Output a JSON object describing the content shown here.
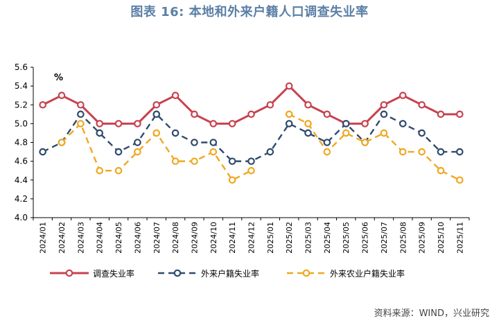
{
  "title": "图表 16: 本地和外来户籍人口调查失业率",
  "source": "资料来源：WIND，兴业研究",
  "chart_data": {
    "type": "line",
    "unit": "%",
    "ylim": [
      4.0,
      5.6
    ],
    "yticks": [
      "4.0",
      "4.2",
      "4.4",
      "4.6",
      "4.8",
      "5.0",
      "5.2",
      "5.4",
      "5.6"
    ],
    "categories": [
      "2024/01",
      "2024/02",
      "2024/03",
      "2024/04",
      "2024/05",
      "2024/06",
      "2024/07",
      "2024/08",
      "2024/09",
      "2024/10",
      "2024/11",
      "2024/12",
      "2025/01",
      "2025/02",
      "2025/03",
      "2025/04",
      "2025/05",
      "2025/06",
      "2025/07",
      "2025/08",
      "2025/09",
      "2025/10",
      "2025/11"
    ],
    "series": [
      {
        "name": "调查失业率",
        "color": "#c8424f",
        "style": "solid",
        "values": [
          5.2,
          5.3,
          5.2,
          5.0,
          5.0,
          5.0,
          5.2,
          5.3,
          5.1,
          5.0,
          5.0,
          5.1,
          5.2,
          5.4,
          5.2,
          5.1,
          5.0,
          5.0,
          5.2,
          5.3,
          5.2,
          5.1,
          5.1
        ]
      },
      {
        "name": "外来户籍失业率",
        "color": "#2f4a6e",
        "style": "dash",
        "values": [
          4.7,
          4.8,
          5.1,
          4.9,
          4.7,
          4.8,
          5.1,
          4.9,
          4.8,
          4.8,
          4.6,
          4.6,
          4.7,
          5.0,
          4.9,
          4.8,
          5.0,
          4.8,
          5.1,
          5.0,
          4.9,
          4.7,
          4.7
        ]
      },
      {
        "name": "外来农业户籍失业率",
        "color": "#f0a820",
        "style": "dash",
        "values": [
          null,
          4.8,
          5.0,
          4.5,
          4.5,
          4.7,
          4.9,
          4.6,
          4.6,
          4.7,
          4.4,
          4.5,
          null,
          5.1,
          5.0,
          4.7,
          4.9,
          4.8,
          4.9,
          4.7,
          4.7,
          4.5,
          4.4
        ]
      }
    ]
  }
}
